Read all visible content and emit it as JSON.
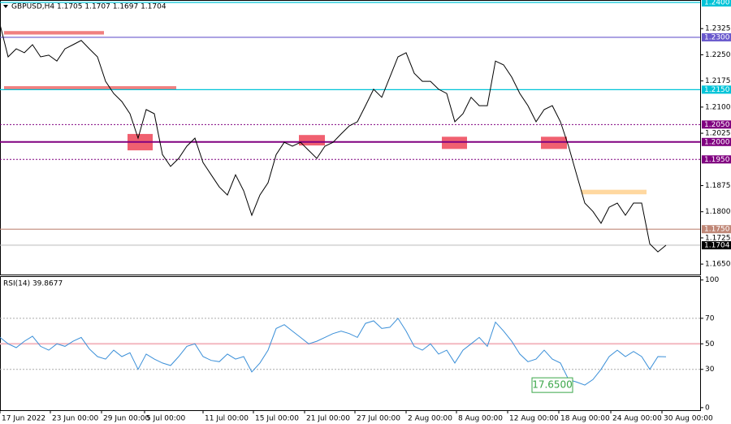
{
  "chart_data": [
    {
      "type": "line",
      "title": "GBPUSD,H4  1.1705 1.1707 1.1697 1.1704",
      "color": "#000000",
      "x": [
        0,
        1,
        2,
        3,
        4,
        5,
        6,
        7,
        8,
        9,
        10,
        11,
        12,
        13,
        14,
        15,
        16,
        17,
        18,
        19,
        20,
        21,
        22,
        23,
        24,
        25,
        26,
        27,
        28,
        29,
        30,
        31,
        32,
        33,
        34,
        35,
        36,
        37,
        38,
        39,
        40,
        41,
        42,
        43,
        44,
        45,
        46,
        47,
        48,
        49,
        50,
        51,
        52,
        53,
        54,
        55,
        56,
        57,
        58,
        59,
        60,
        61,
        62,
        63,
        64,
        65,
        66,
        67,
        68,
        69,
        70,
        71,
        72,
        73,
        74,
        75,
        76,
        77,
        78,
        79,
        80,
        81,
        82
      ],
      "values": [
        1.2337,
        1.2244,
        1.2267,
        1.2256,
        1.2279,
        1.2244,
        1.2249,
        1.2232,
        1.2267,
        1.2279,
        1.2291,
        1.2267,
        1.2244,
        1.2174,
        1.2139,
        1.2116,
        1.2081,
        1.2011,
        1.2093,
        1.2081,
        1.1964,
        1.193,
        1.1953,
        1.1988,
        1.2011,
        1.1941,
        1.1906,
        1.1871,
        1.1848,
        1.1906,
        1.186,
        1.179,
        1.1848,
        1.1883,
        1.1964,
        1.1999,
        1.1988,
        1.1999,
        1.1976,
        1.1953,
        1.1988,
        1.1999,
        1.2023,
        1.2046,
        1.2058,
        1.2104,
        1.2151,
        1.2128,
        1.2186,
        1.2244,
        1.2256,
        1.2197,
        1.2174,
        1.2174,
        1.2151,
        1.2139,
        1.2058,
        1.2081,
        1.2128,
        1.2104,
        1.2104,
        1.2232,
        1.2221,
        1.2186,
        1.2139,
        1.2104,
        1.2058,
        1.2093,
        1.2104,
        1.2058,
        1.1988,
        1.1906,
        1.1825,
        1.1801,
        1.1767,
        1.1813,
        1.1825,
        1.179,
        1.1825,
        1.1825,
        1.1708,
        1.1685,
        1.1704
      ],
      "xlim": [
        0,
        86.2
      ],
      "ylim": [
        1.162,
        1.2407
      ],
      "yticks": [
        {
          "value": 1.2325,
          "label": "1.2325"
        },
        {
          "value": 1.225,
          "label": "1.2250"
        },
        {
          "value": 1.2175,
          "label": "1.2175"
        },
        {
          "value": 1.21,
          "label": "1.2100"
        },
        {
          "value": 1.2025,
          "label": "1.2025"
        },
        {
          "value": 1.1875,
          "label": "1.1875"
        },
        {
          "value": 1.18,
          "label": "1.1800"
        },
        {
          "value": 1.1725,
          "label": "1.1725"
        },
        {
          "value": 1.165,
          "label": "1.1650"
        }
      ],
      "levels": [
        {
          "value": 1.24,
          "label": "1.2400",
          "color": "#00c4d8",
          "style": "solid"
        },
        {
          "value": 1.23,
          "label": "1.2300",
          "color": "#6a5acd",
          "style": "solid"
        },
        {
          "value": 1.215,
          "label": "1.2150",
          "color": "#00c4d8",
          "style": "solid"
        },
        {
          "value": 1.205,
          "label": "1.2050",
          "color": "#800080",
          "style": "dotted"
        },
        {
          "value": 1.2,
          "label": "1.2000",
          "color": "#800080",
          "style": "thick"
        },
        {
          "value": 1.195,
          "label": "1.1950",
          "color": "#800080",
          "style": "dotted"
        },
        {
          "value": 1.175,
          "label": "1.1750",
          "color": "#c08878",
          "style": "solid"
        },
        {
          "value": 1.1704,
          "label": "1.1704",
          "color": "#000000",
          "style": "current"
        }
      ],
      "zones": [
        {
          "x": [
            0.5,
            12.8
          ],
          "y": [
            1.2308,
            1.2318
          ],
          "color": "#f08080"
        },
        {
          "x": [
            0.5,
            21.7
          ],
          "y": [
            1.215,
            1.216
          ],
          "color": "#f08080"
        },
        {
          "x": [
            15.7,
            18.8
          ],
          "y": [
            1.1976,
            1.2023
          ],
          "color": "#f06070"
        },
        {
          "x": [
            36.8,
            40
          ],
          "y": [
            1.199,
            1.202
          ],
          "color": "#f06070"
        },
        {
          "x": [
            54.4,
            57.5
          ],
          "y": [
            1.198,
            1.2015
          ],
          "color": "#f06070"
        },
        {
          "x": [
            66.6,
            69.8
          ],
          "y": [
            1.198,
            1.2015
          ],
          "color": "#f06070"
        },
        {
          "x": [
            71.6,
            79.6
          ],
          "y": [
            1.185,
            1.1863
          ],
          "color": "#ffd8a0"
        }
      ]
    },
    {
      "type": "line",
      "title": "RSI(14) 39.8677",
      "color": "#3a8fd8",
      "x": [
        0,
        1,
        2,
        3,
        4,
        5,
        6,
        7,
        8,
        9,
        10,
        11,
        12,
        13,
        14,
        15,
        16,
        17,
        18,
        19,
        20,
        21,
        22,
        23,
        24,
        25,
        26,
        27,
        28,
        29,
        30,
        31,
        32,
        33,
        34,
        35,
        36,
        37,
        38,
        39,
        40,
        41,
        42,
        43,
        44,
        45,
        46,
        47,
        48,
        49,
        50,
        51,
        52,
        53,
        54,
        55,
        56,
        57,
        58,
        59,
        60,
        61,
        62,
        63,
        64,
        65,
        66,
        67,
        68,
        69,
        70,
        71,
        72,
        73,
        74,
        75,
        76,
        77,
        78,
        79,
        80,
        81,
        82
      ],
      "values": [
        55,
        50,
        47,
        52,
        56,
        48,
        45,
        50,
        48,
        52,
        55,
        46,
        40,
        38,
        45,
        40,
        43,
        30,
        42,
        38,
        35,
        33,
        40,
        48,
        50,
        40,
        37,
        36,
        42,
        38,
        40,
        28,
        35,
        45,
        62,
        65,
        60,
        55,
        50,
        52,
        55,
        58,
        60,
        58,
        55,
        66,
        68,
        62,
        63,
        70,
        60,
        48,
        45,
        50,
        42,
        45,
        35,
        45,
        50,
        55,
        48,
        67,
        60,
        52,
        42,
        36,
        38,
        45,
        38,
        35,
        22,
        20,
        17.65,
        22,
        30,
        40,
        45,
        40,
        44,
        40,
        30,
        40,
        39.87
      ],
      "xlim": [
        0,
        86.2
      ],
      "ylim": [
        -2,
        103
      ],
      "yticks": [
        100,
        70,
        50,
        30,
        0
      ],
      "levels": [
        {
          "value": 70,
          "color": "#aaaaaa",
          "style": "dotted"
        },
        {
          "value": 50,
          "color": "#f4b8c0",
          "style": "thick"
        },
        {
          "value": 30,
          "color": "#aaaaaa",
          "style": "dotted"
        }
      ],
      "annotation": {
        "value": 17.65,
        "label": "17.6500"
      },
      "xticks": [
        {
          "value": 0,
          "label": "17 Jun 2022"
        },
        {
          "value": 6.2,
          "label": "23 Jun 00:00"
        },
        {
          "value": 12.5,
          "label": "29 Jun 00:00"
        },
        {
          "value": 17.8,
          "label": "5 Jul 00:00"
        },
        {
          "value": 25,
          "label": "11 Jul 00:00"
        },
        {
          "value": 31.2,
          "label": "15 Jul 00:00"
        },
        {
          "value": 37.5,
          "label": "21 Jul 00:00"
        },
        {
          "value": 43.7,
          "label": "27 Jul 00:00"
        },
        {
          "value": 50,
          "label": "2 Aug 00:00"
        },
        {
          "value": 56.2,
          "label": "8 Aug 00:00"
        },
        {
          "value": 62.5,
          "label": "12 Aug 00:00"
        },
        {
          "value": 68.8,
          "label": "18 Aug 00:00"
        },
        {
          "value": 75.2,
          "label": "24 Aug 00:00"
        },
        {
          "value": 81.5,
          "label": "30 Aug 00:00"
        }
      ]
    }
  ]
}
